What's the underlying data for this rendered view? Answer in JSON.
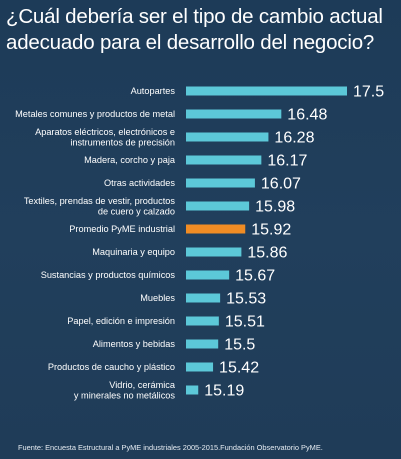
{
  "title_lines": [
    "¿Cuál debería ser el tipo de cambio actual",
    "adecuado para el desarrollo del negocio?"
  ],
  "footer": "Fuente: Encuesta Estructural a PyME industriales 2005-2015.Fundación Observatorio PyME.",
  "colors": {
    "background": "#1f3d5a",
    "bar": "#5cc8d8",
    "highlight_bar": "#f08c24",
    "highlight_value": "#f08c24",
    "text": "#ffffff"
  },
  "chart_data": {
    "type": "bar",
    "orientation": "horizontal",
    "title": "¿Cuál debería ser el tipo de cambio actual adecuado para el desarrollo del negocio?",
    "xlabel": "",
    "ylabel": "",
    "categories": [
      [
        "Autopartes"
      ],
      [
        "Metales comunes y productos de metal"
      ],
      [
        "Aparatos eléctricos, electrónicos e",
        "instrumentos de precisión"
      ],
      [
        "Madera, corcho y paja"
      ],
      [
        "Otras actividades"
      ],
      [
        "Textiles, prendas de vestir, productos",
        "de cuero y calzado"
      ],
      [
        "Promedio PyME industrial"
      ],
      [
        "Maquinaria y equipo"
      ],
      [
        "Sustancias y productos químicos"
      ],
      [
        "Muebles"
      ],
      [
        "Papel, edición e impresión"
      ],
      [
        "Alimentos y bebidas"
      ],
      [
        "Productos de caucho y plástico"
      ],
      [
        "Vidrio, cerámica",
        "y minerales no metálicos"
      ]
    ],
    "values": [
      17.5,
      16.48,
      16.28,
      16.17,
      16.07,
      15.98,
      15.92,
      15.86,
      15.67,
      15.53,
      15.51,
      15.5,
      15.42,
      15.19
    ],
    "value_labels": [
      "17.5",
      "16.48",
      "16.28",
      "16.17",
      "16.07",
      "15.98",
      "15.92",
      "15.86",
      "15.67",
      "15.53",
      "15.51",
      "15.5",
      "15.42",
      "15.19"
    ],
    "highlight_index": 6,
    "axis_visible": false,
    "grid": false,
    "legend": "none"
  }
}
